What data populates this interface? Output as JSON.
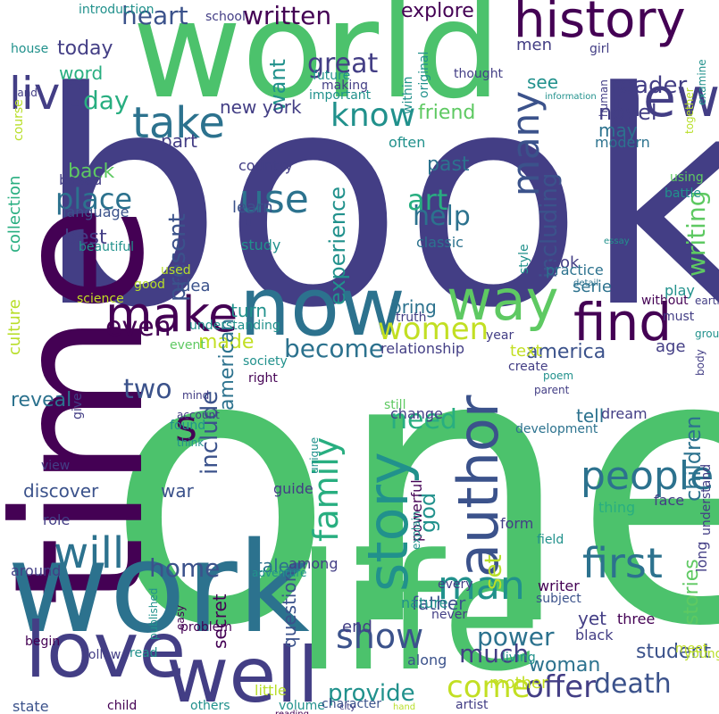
{
  "palette": {
    "darkpurple": "#440154",
    "indigo": "#433e85",
    "slate": "#3b528b",
    "steelblue": "#2c728e",
    "teal": "#21918c",
    "seagreen": "#28ae80",
    "green": "#5ec962",
    "lime": "#b8de29",
    "yellow": "#c2df23"
  },
  "words": [
    {
      "text": "book",
      "color": "#433e85"
    },
    {
      "text": "one",
      "color": "#4cc26c"
    },
    {
      "text": "world",
      "color": "#4cc26c"
    },
    {
      "text": "time",
      "color": "#440154"
    },
    {
      "text": "work",
      "color": "#2c728e"
    },
    {
      "text": "life",
      "color": "#4cc26c"
    },
    {
      "text": "now",
      "color": "#2c728e"
    },
    {
      "text": "history",
      "color": "#440154"
    },
    {
      "text": "new",
      "color": "#433e85"
    },
    {
      "text": "love",
      "color": "#433e85"
    },
    {
      "text": "well",
      "color": "#433e85"
    },
    {
      "text": "author",
      "color": "#3b528b"
    },
    {
      "text": "story",
      "color": "#21918c"
    },
    {
      "text": "way",
      "color": "#5ec962"
    },
    {
      "text": "find",
      "color": "#440154"
    },
    {
      "text": "make",
      "color": "#440154"
    },
    {
      "text": "live",
      "color": "#433e85"
    },
    {
      "text": "people",
      "color": "#2c728e"
    },
    {
      "text": "first",
      "color": "#2c728e"
    },
    {
      "text": "take",
      "color": "#2c728e"
    },
    {
      "text": "man",
      "color": "#21918c"
    },
    {
      "text": "family",
      "color": "#28ae80"
    },
    {
      "text": "use",
      "color": "#2c728e"
    },
    {
      "text": "will",
      "color": "#2c728e"
    },
    {
      "text": "many",
      "color": "#3b528b"
    },
    {
      "text": "women",
      "color": "#c2df23"
    },
    {
      "text": "know",
      "color": "#21918c"
    },
    {
      "text": "written",
      "color": "#440154"
    },
    {
      "text": "s",
      "color": "#440154"
    },
    {
      "text": "show",
      "color": "#3b528b"
    },
    {
      "text": "come",
      "color": "#c2df23"
    },
    {
      "text": "offer",
      "color": "#433e85"
    },
    {
      "text": "great",
      "color": "#433e85"
    },
    {
      "text": "even",
      "color": "#440154"
    },
    {
      "text": "reader",
      "color": "#433e85"
    },
    {
      "text": "heart",
      "color": "#3b528b"
    },
    {
      "text": "death",
      "color": "#3b528b"
    },
    {
      "text": "help",
      "color": "#2c728e"
    },
    {
      "text": "place",
      "color": "#2c728e"
    },
    {
      "text": "art",
      "color": "#28ae80"
    },
    {
      "text": "need",
      "color": "#28ae80"
    },
    {
      "text": "become",
      "color": "#2c728e"
    },
    {
      "text": "home",
      "color": "#3b528b"
    },
    {
      "text": "power",
      "color": "#2c728e"
    },
    {
      "text": "much",
      "color": "#433e85"
    },
    {
      "text": "provide",
      "color": "#21918c"
    },
    {
      "text": "day",
      "color": "#28ae80"
    },
    {
      "text": "two",
      "color": "#3b528b"
    },
    {
      "text": "children",
      "color": "#2c728e"
    },
    {
      "text": "writing",
      "color": "#5ec962"
    },
    {
      "text": "including",
      "color": "#3b528b"
    },
    {
      "text": "experience",
      "color": "#21918c"
    },
    {
      "text": "present",
      "color": "#3b528b"
    },
    {
      "text": "include",
      "color": "#3b528b"
    },
    {
      "text": "god",
      "color": "#21918c"
    },
    {
      "text": "set",
      "color": "#b8de29"
    },
    {
      "text": "explore",
      "color": "#440154"
    },
    {
      "text": "stories",
      "color": "#5ec962"
    },
    {
      "text": "novel",
      "color": "#433e85"
    },
    {
      "text": "made",
      "color": "#c2df23"
    },
    {
      "text": "america",
      "color": "#3b528b"
    },
    {
      "text": "student",
      "color": "#3b528b"
    },
    {
      "text": "woman",
      "color": "#2c728e"
    },
    {
      "text": "today",
      "color": "#433e85"
    },
    {
      "text": "word",
      "color": "#28ae80"
    },
    {
      "text": "back",
      "color": "#5ec962"
    },
    {
      "text": "best",
      "color": "#433e85"
    },
    {
      "text": "want",
      "color": "#21918c"
    },
    {
      "text": "friend",
      "color": "#5ec962"
    },
    {
      "text": "past",
      "color": "#2c728e"
    },
    {
      "text": "see",
      "color": "#21918c"
    },
    {
      "text": "men",
      "color": "#433e85"
    },
    {
      "text": "may",
      "color": "#2c728e"
    },
    {
      "text": "new york",
      "color": "#433e85"
    },
    {
      "text": "part",
      "color": "#433e85"
    },
    {
      "text": "learn",
      "color": "#3b528b"
    },
    {
      "text": "turn",
      "color": "#21918c"
    },
    {
      "text": "idea",
      "color": "#3b528b"
    },
    {
      "text": "look",
      "color": "#433e85"
    },
    {
      "text": "serie",
      "color": "#2c728e"
    },
    {
      "text": "bring",
      "color": "#2c728e"
    },
    {
      "text": "american",
      "color": "#2c728e"
    },
    {
      "text": "tale",
      "color": "#2c728e"
    },
    {
      "text": "tell",
      "color": "#2c728e"
    },
    {
      "text": "secret",
      "color": "#440154"
    },
    {
      "text": "question",
      "color": "#3b528b"
    },
    {
      "text": "father",
      "color": "#3b528b"
    },
    {
      "text": "end",
      "color": "#433e85"
    },
    {
      "text": "mother",
      "color": "#c2df23"
    },
    {
      "text": "yet",
      "color": "#433e85"
    },
    {
      "text": "reveal",
      "color": "#2c728e"
    },
    {
      "text": "discover",
      "color": "#3b528b"
    },
    {
      "text": "war",
      "color": "#3b528b"
    },
    {
      "text": "age",
      "color": "#433e85"
    },
    {
      "text": "text",
      "color": "#c2df23"
    },
    {
      "text": "culture",
      "color": "#b8de29"
    },
    {
      "text": "collection",
      "color": "#28ae80"
    },
    {
      "text": "language",
      "color": "#3b528b"
    },
    {
      "text": "based",
      "color": "#433e85"
    },
    {
      "text": "country",
      "color": "#433e85"
    },
    {
      "text": "study",
      "color": "#21918c"
    },
    {
      "text": "classic",
      "color": "#2c728e"
    },
    {
      "text": "often",
      "color": "#21918c"
    },
    {
      "text": "dream",
      "color": "#433e85"
    },
    {
      "text": "practice",
      "color": "#2c728e"
    },
    {
      "text": "modern",
      "color": "#2c728e"
    },
    {
      "text": "relationship",
      "color": "#433e85"
    },
    {
      "text": "change",
      "color": "#433e85"
    },
    {
      "text": "guide",
      "color": "#433e85"
    },
    {
      "text": "form",
      "color": "#433e85"
    },
    {
      "text": "thing",
      "color": "#28ae80"
    },
    {
      "text": "face",
      "color": "#433e85"
    },
    {
      "text": "long",
      "color": "#433e85"
    },
    {
      "text": "writer",
      "color": "#440154"
    },
    {
      "text": "subject",
      "color": "#3b528b"
    },
    {
      "text": "three",
      "color": "#440154"
    },
    {
      "text": "black",
      "color": "#433e85"
    },
    {
      "text": "nature",
      "color": "#21918c"
    },
    {
      "text": "never",
      "color": "#433e85"
    },
    {
      "text": "every",
      "color": "#433e85"
    },
    {
      "text": "field",
      "color": "#21918c"
    },
    {
      "text": "among",
      "color": "#433e85"
    },
    {
      "text": "along",
      "color": "#3b528b"
    },
    {
      "text": "still",
      "color": "#5ec962"
    },
    {
      "text": "development",
      "color": "#2c728e"
    },
    {
      "text": "create",
      "color": "#433e85"
    },
    {
      "text": "powerful",
      "color": "#440154"
    },
    {
      "text": "little",
      "color": "#b8de29"
    },
    {
      "text": "living",
      "color": "#21918c"
    },
    {
      "text": "meet",
      "color": "#c2df23"
    },
    {
      "text": "young",
      "color": "#b8de29"
    },
    {
      "text": "artist",
      "color": "#433e85"
    },
    {
      "text": "others",
      "color": "#21918c"
    },
    {
      "text": "volume",
      "color": "#21918c"
    },
    {
      "text": "character",
      "color": "#3b528b"
    },
    {
      "text": "child",
      "color": "#440154"
    },
    {
      "text": "state",
      "color": "#3b528b"
    },
    {
      "text": "read",
      "color": "#21918c"
    },
    {
      "text": "problem",
      "color": "#440154"
    },
    {
      "text": "begin",
      "color": "#440154"
    },
    {
      "text": "follow",
      "color": "#433e85"
    },
    {
      "text": "around",
      "color": "#433e85"
    },
    {
      "text": "role",
      "color": "#433e85"
    },
    {
      "text": "view",
      "color": "#433e85"
    },
    {
      "text": "found",
      "color": "#21918c"
    },
    {
      "text": "give",
      "color": "#433e85"
    },
    {
      "text": "understanding",
      "color": "#21918c"
    },
    {
      "text": "event",
      "color": "#5ec962"
    },
    {
      "text": "society",
      "color": "#21918c"
    },
    {
      "text": "right",
      "color": "#440154"
    },
    {
      "text": "without",
      "color": "#440154"
    },
    {
      "text": "play",
      "color": "#21918c"
    },
    {
      "text": "must",
      "color": "#433e85"
    },
    {
      "text": "year",
      "color": "#433e85"
    },
    {
      "text": "parent",
      "color": "#433e85"
    },
    {
      "text": "group",
      "color": "#21918c"
    },
    {
      "text": "earth",
      "color": "#433e85"
    },
    {
      "text": "body",
      "color": "#433e85"
    },
    {
      "text": "understand",
      "color": "#433e85"
    },
    {
      "text": "science",
      "color": "#c2df23"
    },
    {
      "text": "good",
      "color": "#b8de29"
    },
    {
      "text": "used",
      "color": "#b8de29"
    },
    {
      "text": "truth",
      "color": "#433e85"
    },
    {
      "text": "poem",
      "color": "#21918c"
    },
    {
      "text": "detail",
      "color": "#2c728e"
    },
    {
      "text": "essay",
      "color": "#21918c"
    },
    {
      "text": "battle",
      "color": "#21918c"
    },
    {
      "text": "using",
      "color": "#5ec962"
    },
    {
      "text": "u",
      "color": "#433e85"
    },
    {
      "text": "beautiful",
      "color": "#21918c"
    },
    {
      "text": "style",
      "color": "#21918c"
    },
    {
      "text": "introduction",
      "color": "#21918c"
    },
    {
      "text": "school",
      "color": "#433e85"
    },
    {
      "text": "house",
      "color": "#21918c"
    },
    {
      "text": "future",
      "color": "#21918c"
    },
    {
      "text": "within",
      "color": "#21918c"
    },
    {
      "text": "original",
      "color": "#21918c"
    },
    {
      "text": "thought",
      "color": "#433e85"
    },
    {
      "text": "girl",
      "color": "#433e85"
    },
    {
      "text": "human",
      "color": "#433e85"
    },
    {
      "text": "together",
      "color": "#b8de29"
    },
    {
      "text": "examine",
      "color": "#21918c"
    },
    {
      "text": "information",
      "color": "#21918c"
    },
    {
      "text": "land",
      "color": "#433e85"
    },
    {
      "text": "course",
      "color": "#b8de29"
    },
    {
      "text": "making",
      "color": "#433e85"
    },
    {
      "text": "important",
      "color": "#21918c"
    },
    {
      "text": "mind",
      "color": "#433e85"
    },
    {
      "text": "account",
      "color": "#433e85"
    },
    {
      "text": "unique",
      "color": "#21918c"
    },
    {
      "text": "think",
      "color": "#21918c"
    },
    {
      "text": "adventure",
      "color": "#21918c"
    },
    {
      "text": "explain",
      "color": "#21918c"
    },
    {
      "text": "published",
      "color": "#21918c"
    },
    {
      "text": "easy",
      "color": "#440154"
    },
    {
      "text": "reading",
      "color": "#440154"
    },
    {
      "text": "city",
      "color": "#433e85"
    },
    {
      "text": "hand",
      "color": "#b8de29"
    },
    {
      "text": "technique",
      "color": "#21918c"
    },
    {
      "text": "political",
      "color": "#433e85"
    },
    {
      "text": "left",
      "color": "#433e85"
    }
  ]
}
